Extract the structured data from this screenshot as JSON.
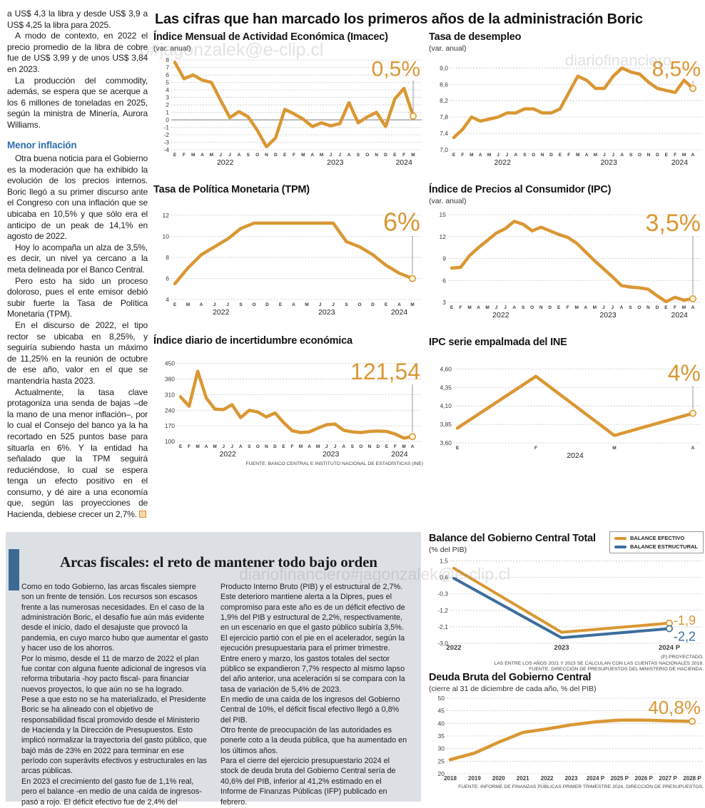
{
  "colors": {
    "orange": "#DA9733",
    "blue": "#3C6E9E",
    "section_bg": "#DCE0E5",
    "accent_bar": "#3D6A92",
    "heading_blue": "#2E6FAD"
  },
  "watermarks": [
    "o#jagonzalek@e-clip.cl",
    "diariofinanciero",
    "diariofinanciero#jagonzalek@e-clip.cl"
  ],
  "left_article": {
    "paragraphs": [
      "a US$ 4,3 la libra y desde US$ 3,9 a US$ 4,25 la libra para 2025.",
      "A modo de contexto, en 2022 el precio promedio de la libra de cobre fue de US$ 3,99 y de unos US$ 3,84 en 2023.",
      "La producción del commodity, además, se espera que se acerque a los 6 millones de toneladas en 2025, según la ministra de Minería, Aurora Williams."
    ],
    "heading": "Menor inflación",
    "paragraphs_2": [
      "Otra buena noticia para el Gobierno es la moderación que ha exhibido la evolución de los precios internos. Boric llegó a su primer discurso ante el Congreso con una inflación que se ubicaba en 10,5% y que sólo era el anticipo de un peak de 14,1% en agosto de 2022.",
      "Hoy lo acompaña un alza de 3,5%, es decir, un nivel ya cercano a la meta delineada por el Banco Central.",
      "Pero esto ha sido un proceso doloroso, pues el ente emisor debió subir fuerte la Tasa de Política Monetaria (TPM).",
      "En el discurso de 2022, el tipo rector se ubicaba en 8,25%, y seguiría subiendo hasta un máximo de 11,25% en la reunión de octubre de ese año, valor en el que se mantendría hasta 2023.",
      "Actualmente, la tasa clave protagoniza una senda de bajas –de la mano de una menor inflación–, por lo cual el Consejo del banco ya la ha recortado en 525 puntos base para situarla en 6%. Y la entidad ha señalado que la TPM seguirá reduciéndose, lo cual se espera tenga un efecto positivo en el consumo, y dé aire a una economía que, según las proyecciones de Hacienda, debiese crecer un 2,7%."
    ]
  },
  "main_title": "Las cifras que han marcado los primeros años de la administración Boric",
  "bottom": {
    "title": "Arcas fiscales: el reto de mantener todo bajo orden",
    "col1": [
      "Como en todo Gobierno, las arcas fiscales siempre son un frente de tensión. Los recursos son escasos frente a las numerosas necesidades. En el caso de la administración Boric, el desafío fue aún más evidente desde el inicio, dado el desajuste que provocó la pandemia, en cuyo marco hubo que aumentar el gasto y hacer uso de los ahorros.",
      "Por lo mismo, desde el 11 de marzo de 2022 el plan fue contar con alguna fuente adicional de ingresos vía reforma tributaria -hoy pacto fiscal- para financiar nuevos proyectos, lo que aún no se ha logrado.",
      "Pese a que esto no se ha materializado, el Presidente Boric se ha alineado con el objetivo de responsabilidad fiscal promovido desde el Ministerio de Hacienda y la Dirección de Presupuestos. Esto implicó normalizar la trayectoria del gasto público, que bajó más de 23% en 2022 para terminar en ese período con superávits efectivos y estructurales en las arcas públicas.",
      "En 2023 el crecimiento del gasto fue de 1,1% real, pero el balance -en medio de una caída de ingresos-  pasó a rojo. El déficit efectivo fue de 2,4% del"
    ],
    "col2": [
      "Producto Interno Bruto (PIB) y el estructural de 2,7%. Este deterioro mantiene alerta a la Dipres, pues el compromiso para este año es de un déficit efectivo de 1,9% del PIB y estructural de 2,2%, respectivamente, en un escenario en que el gasto público subiría 3,5%.",
      "El ejercicio partió con el pie en el acelerador, según la ejecución presupuestaria para el primer trimestre. Entre enero y marzo, los gastos totales del sector público se expandieron 7,7% respecto al mismo lapso del año anterior, una aceleración si se compara con la tasa de variación de 5,4% de 2023.",
      "En medio de una caída de los ingresos del Gobierno Central de 10%, el déficit fiscal efectivo llegó a 0,8% del PIB.",
      "Otro frente de preocupación de las autoridades es ponerle coto a la deuda pública, que ha aumentado en los últimos años.",
      "Para el cierre del ejercicio presupuestario 2024 el stock de deuda bruta del Gobierno Central sería de 40,6% del PIB, inferior al 41,2% estimado en el Informe de Finanzas Públicas (IFP) publicado en febrero."
    ]
  },
  "chart_data": [
    {
      "type": "line",
      "title": "Índice Mensual de Actividad Económica (Imacec)",
      "subtitle": "(var. anual)",
      "highlight": {
        "text": "0,5%",
        "color": "#DA9733"
      },
      "ylim": [
        -4,
        8.3
      ],
      "zero_line": true,
      "drop_line": true,
      "y_ticks": [
        {
          "v": 8,
          "l": "8"
        },
        {
          "v": 7,
          "l": "7"
        },
        {
          "v": 6,
          "l": "6"
        },
        {
          "v": 5,
          "l": "5"
        },
        {
          "v": 4,
          "l": "4"
        },
        {
          "v": 3,
          "l": "3"
        },
        {
          "v": 2,
          "l": "2"
        },
        {
          "v": 1,
          "l": "1"
        },
        {
          "v": 0,
          "l": "0"
        },
        {
          "v": -1,
          "l": "-1"
        },
        {
          "v": -2,
          "l": "-2"
        },
        {
          "v": -3,
          "l": "-3"
        },
        {
          "v": -4,
          "l": "-4"
        }
      ],
      "x_labels": [
        "E",
        "F",
        "M",
        "A",
        "M",
        "J",
        "J",
        "A",
        "S",
        "O",
        "N",
        "D",
        "E",
        "F",
        "M",
        "A",
        "M",
        "J",
        "J",
        "A",
        "S",
        "O",
        "N",
        "D",
        "E",
        "F",
        "M"
      ],
      "years": [
        {
          "label": "2022",
          "from": 0,
          "to": 11
        },
        {
          "label": "2023",
          "from": 12,
          "to": 23
        },
        {
          "label": "2024",
          "from": 24,
          "to": 26
        }
      ],
      "series": [
        {
          "name": "Imacec",
          "color": "#DA9733",
          "width": 4.5,
          "values": [
            7.7,
            5.5,
            6.0,
            5.3,
            5.0,
            2.6,
            0.3,
            1.1,
            0.4,
            -1.4,
            -3.6,
            -2.4,
            1.4,
            0.8,
            0.1,
            -0.9,
            -0.4,
            -0.8,
            -0.5,
            2.3,
            -0.4,
            0.4,
            1.0,
            -0.9,
            2.8,
            4.2,
            0.5
          ]
        }
      ]
    },
    {
      "type": "line",
      "title": "Tasa de desempleo",
      "subtitle": "(var. anual)",
      "highlight": {
        "text": "8,5%",
        "color": "#DA9733"
      },
      "ylim": [
        7.0,
        9.25
      ],
      "drop_line": true,
      "y_ticks": [
        {
          "v": 9.0,
          "l": "9,0"
        },
        {
          "v": 8.6,
          "l": "8,6"
        },
        {
          "v": 8.2,
          "l": "8,2"
        },
        {
          "v": 7.8,
          "l": "7,8"
        },
        {
          "v": 7.4,
          "l": "7,4"
        },
        {
          "v": 7.0,
          "l": "7,0"
        }
      ],
      "x_labels": [
        "E",
        "F",
        "M",
        "A",
        "M",
        "J",
        "J",
        "A",
        "S",
        "O",
        "N",
        "D",
        "E",
        "F",
        "M",
        "A",
        "M",
        "J",
        "J",
        "A",
        "S",
        "O",
        "N",
        "D",
        "E",
        "F",
        "M",
        "A"
      ],
      "years": [
        {
          "label": "2022",
          "from": 0,
          "to": 11
        },
        {
          "label": "2023",
          "from": 12,
          "to": 23
        },
        {
          "label": "2024",
          "from": 24,
          "to": 27
        }
      ],
      "series": [
        {
          "name": "Tasa de desempleo",
          "color": "#DA9733",
          "width": 4.5,
          "values": [
            7.3,
            7.5,
            7.8,
            7.7,
            7.75,
            7.8,
            7.9,
            7.9,
            8.0,
            8.0,
            7.9,
            7.9,
            8.0,
            8.4,
            8.8,
            8.7,
            8.5,
            8.5,
            8.8,
            9.0,
            8.9,
            8.85,
            8.65,
            8.5,
            8.45,
            8.4,
            8.7,
            8.5
          ]
        }
      ]
    },
    {
      "type": "line",
      "title": "Tasa de Política Monetaria (TPM)",
      "subtitle": "",
      "highlight": {
        "text": "6%",
        "color": "#DA9733"
      },
      "ylim": [
        4,
        12.6
      ],
      "drop_line": true,
      "y_ticks": [
        {
          "v": 12,
          "l": "12"
        },
        {
          "v": 10,
          "l": "10"
        },
        {
          "v": 8,
          "l": "8"
        },
        {
          "v": 6,
          "l": "6"
        },
        {
          "v": 4,
          "l": "4"
        }
      ],
      "x_labels": [
        "E",
        "M",
        "A",
        "J",
        "J",
        "S",
        "O",
        "D",
        "E",
        "A",
        "M",
        "J",
        "J",
        "S",
        "O",
        "D",
        "E",
        "A",
        "M"
      ],
      "years": [
        {
          "label": "2022",
          "from": 0,
          "to": 7
        },
        {
          "label": "2023",
          "from": 8,
          "to": 15
        },
        {
          "label": "2024",
          "from": 16,
          "to": 18
        }
      ],
      "series": [
        {
          "name": "TPM",
          "color": "#DA9733",
          "width": 4.5,
          "values": [
            5.5,
            7.0,
            8.25,
            9.0,
            9.75,
            10.75,
            11.25,
            11.25,
            11.25,
            11.25,
            11.25,
            11.25,
            11.25,
            9.5,
            9.0,
            8.25,
            7.25,
            6.5,
            6.0
          ]
        }
      ]
    },
    {
      "type": "line",
      "title": "Índice de Precios al Consumidor (IPC)",
      "subtitle": "(var. anual)",
      "highlight": {
        "text": "3,5%",
        "color": "#DA9733"
      },
      "ylim": [
        3,
        15.6
      ],
      "drop_line": true,
      "y_ticks": [
        {
          "v": 15,
          "l": "15"
        },
        {
          "v": 12,
          "l": "12"
        },
        {
          "v": 9,
          "l": "9"
        },
        {
          "v": 6,
          "l": "6"
        },
        {
          "v": 3,
          "l": "3"
        }
      ],
      "x_labels": [
        "E",
        "F",
        "M",
        "A",
        "M",
        "J",
        "J",
        "A",
        "S",
        "O",
        "N",
        "D",
        "E",
        "F",
        "M",
        "A",
        "M",
        "J",
        "J",
        "A",
        "S",
        "O",
        "N",
        "D",
        "E",
        "F",
        "M",
        "A"
      ],
      "years": [
        {
          "label": "2022",
          "from": 0,
          "to": 11
        },
        {
          "label": "2023",
          "from": 12,
          "to": 23
        },
        {
          "label": "2024",
          "from": 24,
          "to": 27
        }
      ],
      "series": [
        {
          "name": "IPC",
          "color": "#DA9733",
          "width": 4.5,
          "values": [
            7.7,
            7.8,
            9.4,
            10.5,
            11.5,
            12.5,
            13.1,
            14.1,
            13.7,
            12.8,
            13.3,
            12.8,
            12.3,
            11.9,
            11.1,
            9.9,
            8.7,
            7.6,
            6.5,
            5.3,
            5.1,
            5.0,
            4.8,
            3.9,
            3.1,
            3.7,
            3.3,
            3.5
          ]
        }
      ]
    },
    {
      "type": "line",
      "title": "Índice diario de incertidumbre económica",
      "subtitle": "",
      "highlight": {
        "text": "121,54",
        "color": "#DA9733"
      },
      "ylim": [
        100,
        465
      ],
      "drop_line": true,
      "y_ticks": [
        {
          "v": 450,
          "l": "450"
        },
        {
          "v": 380,
          "l": "380"
        },
        {
          "v": 310,
          "l": "310"
        },
        {
          "v": 240,
          "l": "240"
        },
        {
          "v": 170,
          "l": "170"
        },
        {
          "v": 100,
          "l": "100"
        }
      ],
      "x_labels": [
        "E",
        "F",
        "M",
        "A",
        "M",
        "J",
        "J",
        "A",
        "S",
        "O",
        "N",
        "D",
        "E",
        "F",
        "M",
        "A",
        "M",
        "J",
        "J",
        "A",
        "S",
        "O",
        "N",
        "D",
        "E",
        "F",
        "M",
        "A"
      ],
      "years": [
        {
          "label": "2022",
          "from": 0,
          "to": 11
        },
        {
          "label": "2023",
          "from": 12,
          "to": 23
        },
        {
          "label": "2024",
          "from": 24,
          "to": 27
        }
      ],
      "series": [
        {
          "name": "Incertidumbre económica",
          "color": "#DA9733",
          "width": 4.5,
          "values": [
            300,
            258,
            415,
            295,
            245,
            243,
            265,
            207,
            240,
            232,
            210,
            228,
            185,
            148,
            140,
            143,
            160,
            175,
            178,
            150,
            143,
            140,
            145,
            147,
            145,
            133,
            115,
            121.54
          ]
        }
      ],
      "source": "FUENTE: BANCO CENTRAL E INSTITUTO NACIONAL DE ESTADÍSTICAS (INE)"
    },
    {
      "type": "line",
      "title": "IPC serie empalmada del INE",
      "subtitle": "",
      "highlight": {
        "text": "4%",
        "color": "#DA9733"
      },
      "ylim": [
        3.6,
        4.7
      ],
      "drop_line": true,
      "y_ticks": [
        {
          "v": 4.6,
          "l": "4,60"
        },
        {
          "v": 4.35,
          "l": "4,35"
        },
        {
          "v": 4.1,
          "l": "4,10"
        },
        {
          "v": 3.85,
          "l": "3,85"
        },
        {
          "v": 3.6,
          "l": "3,60"
        }
      ],
      "x_labels": [
        "E",
        "F",
        "M",
        "A"
      ],
      "years": [
        {
          "label": "2024",
          "from": 0,
          "to": 3
        }
      ],
      "series": [
        {
          "name": "IPC serie empalmada",
          "color": "#DA9733",
          "width": 4.5,
          "values": [
            3.8,
            4.5,
            3.7,
            4.0
          ]
        }
      ]
    },
    {
      "type": "line",
      "title": "Balance del Gobierno Central Total",
      "subtitle": "(% del PIB)",
      "ylim": [
        -3.0,
        1.6
      ],
      "drop_line": false,
      "y_ticks": [
        {
          "v": 1.5,
          "l": "1,5"
        },
        {
          "v": 0.6,
          "l": "0,6"
        },
        {
          "v": -0.3,
          "l": "-0,3"
        },
        {
          "v": -1.2,
          "l": "-1,2"
        },
        {
          "v": -2.1,
          "l": "-2,1"
        },
        {
          "v": -3.0,
          "l": "-3,0"
        }
      ],
      "x_labels": [
        "2022",
        "2023",
        "2024 P"
      ],
      "series": [
        {
          "name": "BALANCE EFECTIVO",
          "color": "#DA9733",
          "width": 4,
          "values": [
            1.1,
            -2.4,
            -1.9
          ],
          "end_label": "-1,9",
          "end_label_dy": 2
        },
        {
          "name": "BALANCE ESTRUCTURAL",
          "color": "#3C6E9E",
          "width": 4,
          "values": [
            0.55,
            -2.7,
            -2.2
          ],
          "end_label": "-2,2",
          "end_label_dy": 17
        }
      ],
      "footnotes": [
        "(P) PROYECTADO.",
        "LAS ENTRE LOS AÑOS 2021 Y 2023 SE CALCULAN  CON LAS CUENTAS NACIONALES 2018.",
        "FUENTE: DIRECCIÓN DE PRESUPUESTOS DEL MINISTERIO DE HACIENDA."
      ]
    },
    {
      "type": "line",
      "title": "Deuda Bruta del Gobierno Central",
      "subtitle": "(cierre al 31 de diciembre de cada año, % del PIB)",
      "highlight": {
        "text": "40,8%",
        "color": "#DA9733"
      },
      "ylim": [
        20,
        50
      ],
      "drop_line": false,
      "y_ticks": [
        {
          "v": 50,
          "l": "50"
        },
        {
          "v": 45,
          "l": "45"
        },
        {
          "v": 40,
          "l": "40"
        },
        {
          "v": 35,
          "l": "35"
        },
        {
          "v": 30,
          "l": "30"
        },
        {
          "v": 25,
          "l": "25"
        },
        {
          "v": 20,
          "l": "20"
        }
      ],
      "x_labels": [
        "2018",
        "2019",
        "2020",
        "2021",
        "2022",
        "2023",
        "2024 P",
        "2025 P",
        "2026 P",
        "2027 P",
        "2028 P"
      ],
      "series": [
        {
          "name": "Deuda bruta",
          "color": "#DA9733",
          "width": 4.5,
          "values": [
            25.6,
            28.2,
            32.5,
            36.4,
            37.8,
            39.4,
            40.6,
            41.3,
            41.3,
            41.0,
            40.8
          ]
        }
      ],
      "source": "FUENTE: INFORME DE FINANZAS PÚBLICAS PRIMER TRIMESTRE 2024, DIRECCIÓN DE PRESUPUESTOS."
    }
  ]
}
